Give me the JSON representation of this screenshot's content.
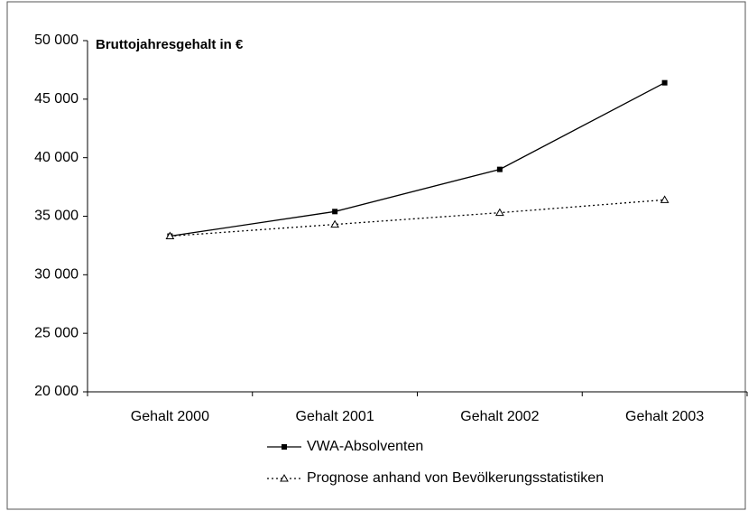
{
  "chart_data": {
    "type": "line",
    "title": "Bruttojahresgehalt in €",
    "categories": [
      "Gehalt 2000",
      "Gehalt 2001",
      "Gehalt 2002",
      "Gehalt 2003"
    ],
    "series": [
      {
        "name": "VWA-Absolventen",
        "color": "#000000",
        "marker": "square",
        "line_style": "solid",
        "values": [
          33300,
          35400,
          39000,
          46400
        ]
      },
      {
        "name": "Prognose anhand von Bevölkerungsstatistiken",
        "color": "#000000",
        "marker": "triangle",
        "line_style": "dotted",
        "values": [
          33300,
          34300,
          35300,
          36400
        ]
      }
    ],
    "ylim": [
      20000,
      50000
    ],
    "yticks": [
      {
        "value": 20000,
        "label": "20 000"
      },
      {
        "value": 25000,
        "label": "25 000"
      },
      {
        "value": 30000,
        "label": "30 000"
      },
      {
        "value": 35000,
        "label": "35 000"
      },
      {
        "value": 40000,
        "label": "40 000"
      },
      {
        "value": 45000,
        "label": "45 000"
      },
      {
        "value": 50000,
        "label": "50 000"
      }
    ],
    "grid": false,
    "legend": "bottom"
  }
}
